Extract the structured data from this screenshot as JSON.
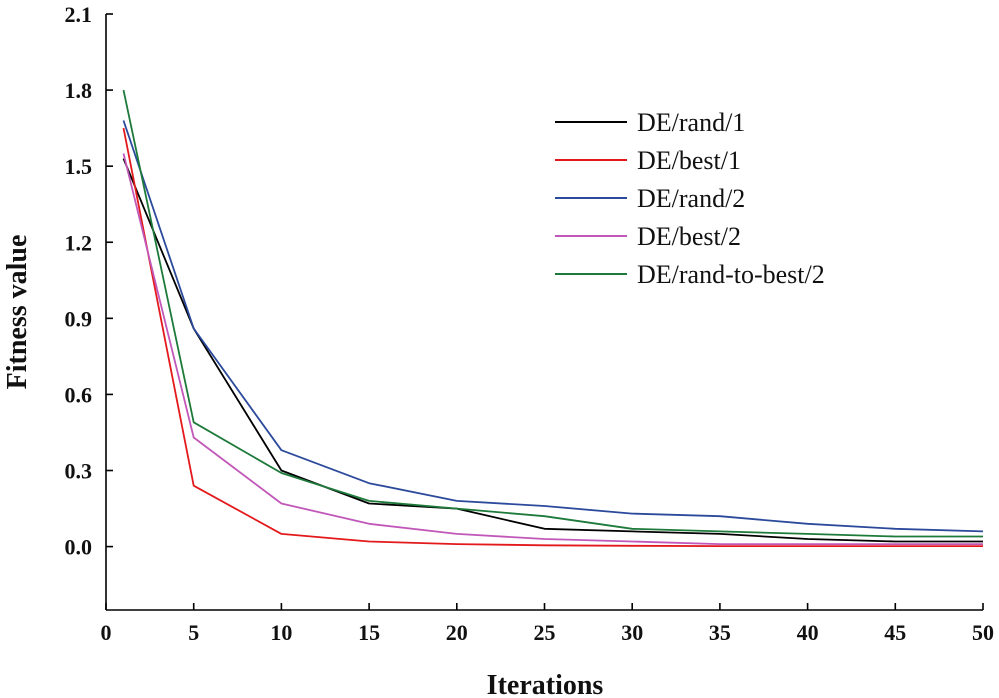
{
  "chart_data": {
    "type": "line",
    "title": "",
    "xlabel": "Iterations",
    "ylabel": "Fitness value",
    "xlim": [
      0,
      50
    ],
    "ylim": [
      -0.25,
      2.1
    ],
    "x_ticks": [
      "0",
      "5",
      "10",
      "15",
      "20",
      "25",
      "30",
      "35",
      "40",
      "45",
      "50"
    ],
    "y_ticks": [
      "0.0",
      "0.3",
      "0.6",
      "0.9",
      "1.2",
      "1.5",
      "1.8",
      "2.1"
    ],
    "x": [
      1,
      5,
      10,
      15,
      20,
      25,
      30,
      35,
      40,
      45,
      50
    ],
    "legend_position": "top-right",
    "series": [
      {
        "name": "DE/rand/1",
        "color": "#000000",
        "values": [
          1.53,
          0.86,
          0.3,
          0.17,
          0.15,
          0.07,
          0.06,
          0.05,
          0.03,
          0.02,
          0.02
        ]
      },
      {
        "name": "DE/best/1",
        "color": "#e3191c",
        "values": [
          1.65,
          0.24,
          0.05,
          0.02,
          0.01,
          0.005,
          0.003,
          0.002,
          0.002,
          0.002,
          0.002
        ]
      },
      {
        "name": "DE/rand/2",
        "color": "#2c4a9c",
        "values": [
          1.68,
          0.86,
          0.38,
          0.25,
          0.18,
          0.16,
          0.13,
          0.12,
          0.09,
          0.07,
          0.06
        ]
      },
      {
        "name": "DE/best/2",
        "color": "#c158b9",
        "values": [
          1.55,
          0.43,
          0.17,
          0.09,
          0.05,
          0.03,
          0.02,
          0.01,
          0.01,
          0.01,
          0.01
        ]
      },
      {
        "name": "DE/rand-to-best/2",
        "color": "#1d7a3a",
        "values": [
          1.8,
          0.49,
          0.29,
          0.18,
          0.15,
          0.12,
          0.07,
          0.06,
          0.05,
          0.04,
          0.04
        ]
      }
    ]
  }
}
